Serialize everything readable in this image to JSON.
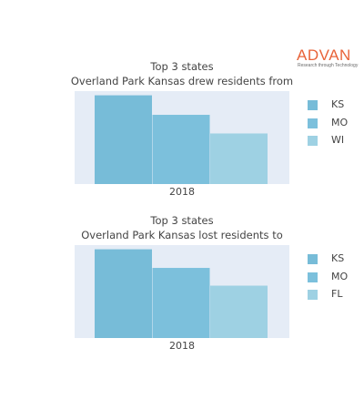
{
  "logo": {
    "word": "ADVAN",
    "tagline": "Research through Technology",
    "color": "#e8643a"
  },
  "chart_data": [
    {
      "type": "bar",
      "title": "Top 3 states",
      "subtitle": "Overland Park Kansas drew residents from",
      "categories": [
        "2018"
      ],
      "series": [
        {
          "name": "KS",
          "values": [
            100
          ],
          "color": "#77bcd8"
        },
        {
          "name": "MO",
          "values": [
            78
          ],
          "color": "#7cc0dc"
        },
        {
          "name": "WI",
          "values": [
            57
          ],
          "color": "#9ed1e3"
        }
      ],
      "ylim": [
        0,
        100
      ],
      "legend": "right",
      "grid": false
    },
    {
      "type": "bar",
      "title": "Top 3 states",
      "subtitle": "Overland Park Kansas lost residents to",
      "categories": [
        "2018"
      ],
      "series": [
        {
          "name": "KS",
          "values": [
            100
          ],
          "color": "#77bcd8"
        },
        {
          "name": "MO",
          "values": [
            79
          ],
          "color": "#7cc0dc"
        },
        {
          "name": "FL",
          "values": [
            59
          ],
          "color": "#9ed1e3"
        }
      ],
      "ylim": [
        0,
        100
      ],
      "legend": "right",
      "grid": false
    }
  ]
}
